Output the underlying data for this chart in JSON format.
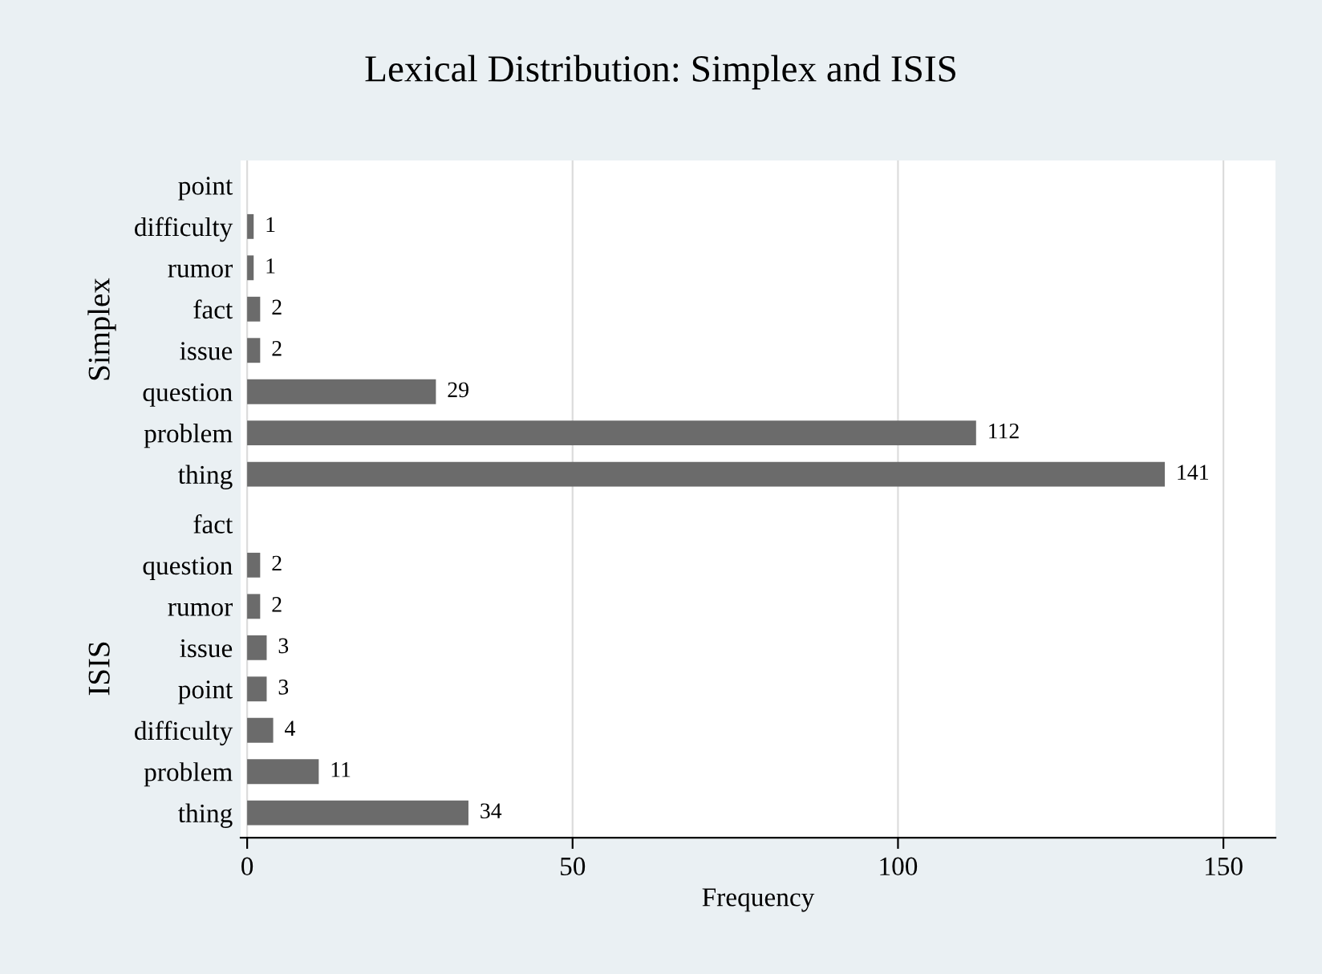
{
  "chart_data": [
    {
      "type": "bar",
      "orientation": "horizontal",
      "title": "Lexical Distribution: Simplex and ISIS",
      "ylabel": "Simplex",
      "categories": [
        "point",
        "difficulty",
        "rumor",
        "fact",
        "issue",
        "question",
        "problem",
        "thing"
      ],
      "values": [
        null,
        1,
        1,
        2,
        2,
        29,
        112,
        141
      ],
      "color": "#6b6b6b",
      "xlim": [
        -1,
        158
      ],
      "xticks": [
        0,
        50,
        100,
        150
      ],
      "grid": "x",
      "data_labels": true,
      "tick_labels": "y"
    },
    {
      "type": "bar",
      "orientation": "horizontal",
      "ylabel": "ISIS",
      "xlabel": "Frequency",
      "categories": [
        "fact",
        "question",
        "rumor",
        "issue",
        "point",
        "difficulty",
        "problem",
        "thing"
      ],
      "values": [
        null,
        2,
        2,
        3,
        3,
        4,
        11,
        34
      ],
      "color": "#6b6b6b",
      "xlim": [
        -1,
        158
      ],
      "xticks": [
        0,
        50,
        100,
        150
      ],
      "grid": "x",
      "data_labels": true
    }
  ]
}
